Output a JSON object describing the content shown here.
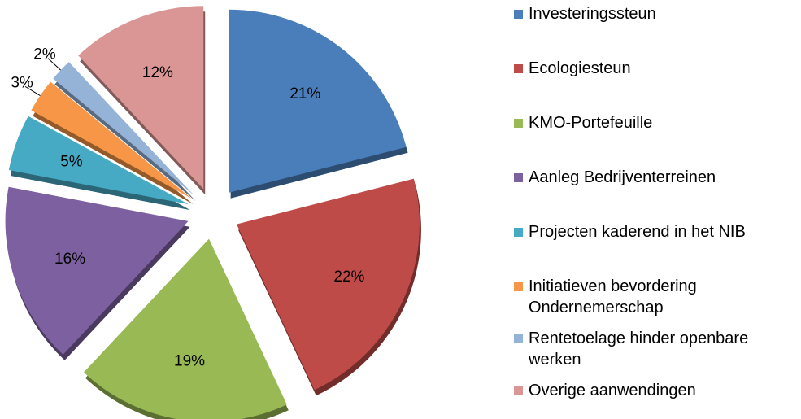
{
  "chart_data": {
    "type": "pie",
    "categories": [
      "Investeringssteun",
      "Ecologiesteun",
      "KMO-Portefeuille",
      "Aanleg Bedrijventerreinen",
      "Projecten kaderend in het NIB",
      "Initiatieven bevordering Ondernemerschap",
      "Rentetoelage hinder openbare werken",
      "Overige aanwendingen"
    ],
    "values": [
      21,
      22,
      19,
      16,
      5,
      3,
      2,
      12
    ],
    "value_labels": [
      "21%",
      "22%",
      "19%",
      "16%",
      "5%",
      "3%",
      "2%",
      "12%"
    ],
    "colors": [
      "#4a7ebb",
      "#be4b48",
      "#98b954",
      "#7d60a0",
      "#46aac5",
      "#f79646",
      "#95b3d7",
      "#d99694"
    ],
    "legend": "right"
  }
}
